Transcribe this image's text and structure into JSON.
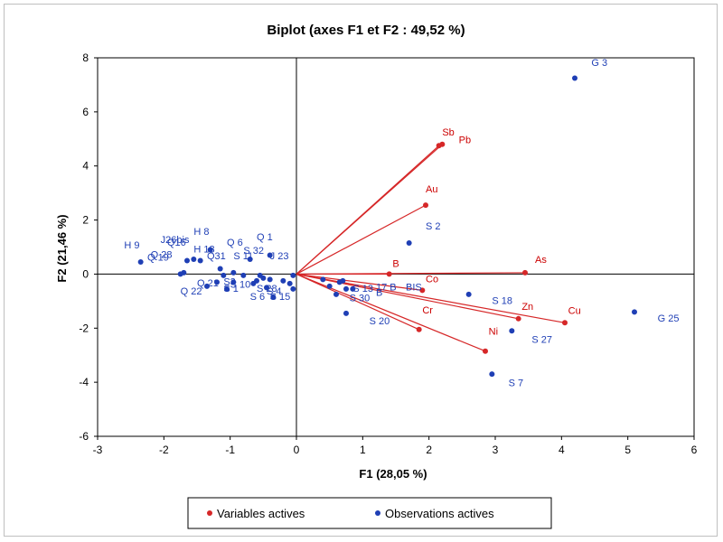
{
  "chart_data": {
    "type": "scatter",
    "title": "Biplot (axes F1 et F2 : 49,52 %)",
    "xlabel": "F1 (28,05 %)",
    "ylabel": "F2 (21,46 %)",
    "xlim": [
      -3,
      6
    ],
    "ylim": [
      -6,
      8
    ],
    "xticks": [
      "-3",
      "-2",
      "-1",
      "0",
      "1",
      "2",
      "3",
      "4",
      "5",
      "6"
    ],
    "yticks": [
      "8",
      "6",
      "4",
      "2",
      "0",
      "-2",
      "-4",
      "-6"
    ],
    "grid": false,
    "legend": {
      "position": "bottom",
      "items": [
        "Variables actives",
        "Observations actives"
      ]
    },
    "colors": {
      "variables": "#d62728",
      "observations": "#1f3fb5"
    },
    "variables": [
      {
        "name": "Sb",
        "x": 2.2,
        "y": 4.8
      },
      {
        "name": "Pb",
        "x": 2.15,
        "y": 4.75
      },
      {
        "name": "Au",
        "x": 1.95,
        "y": 2.55
      },
      {
        "name": "As",
        "x": 3.45,
        "y": 0.05
      },
      {
        "name": "B",
        "x": 1.4,
        "y": 0.0
      },
      {
        "name": "Co",
        "x": 1.9,
        "y": -0.6
      },
      {
        "name": "Zn",
        "x": 3.35,
        "y": -1.65
      },
      {
        "name": "Cu",
        "x": 4.05,
        "y": -1.8
      },
      {
        "name": "Cr",
        "x": 1.85,
        "y": -2.05
      },
      {
        "name": "Ni",
        "x": 2.85,
        "y": -2.85
      }
    ],
    "observations": [
      {
        "name": "G 3",
        "x": 4.2,
        "y": 7.25
      },
      {
        "name": "G 25",
        "x": 5.1,
        "y": -1.4
      },
      {
        "name": "S 2",
        "x": 1.7,
        "y": 1.15
      },
      {
        "name": "S 18",
        "x": 2.6,
        "y": -0.75
      },
      {
        "name": "S 27",
        "x": 3.25,
        "y": -2.1
      },
      {
        "name": "S 7",
        "x": 2.95,
        "y": -3.7
      },
      {
        "name": "S 20",
        "x": 0.75,
        "y": -1.45
      },
      {
        "name": "S 30",
        "x": 0.6,
        "y": -0.75
      },
      {
        "name": "",
        "x": 0.4,
        "y": -0.2
      },
      {
        "name": "",
        "x": 0.5,
        "y": -0.45
      },
      {
        "name": "",
        "x": 0.65,
        "y": -0.3
      },
      {
        "name": "",
        "x": 0.7,
        "y": -0.25
      },
      {
        "name": "",
        "x": 0.75,
        "y": -0.55
      },
      {
        "name": "",
        "x": 0.85,
        "y": -0.55
      },
      {
        "name": "",
        "x": -0.05,
        "y": -0.55
      },
      {
        "name": "",
        "x": -0.1,
        "y": -0.35
      },
      {
        "name": "",
        "x": -0.2,
        "y": -0.25
      },
      {
        "name": "",
        "x": -0.05,
        "y": -0.05
      },
      {
        "name": "J 23",
        "x": -0.4,
        "y": 0.7
      },
      {
        "name": "",
        "x": -0.4,
        "y": -0.2
      },
      {
        "name": "",
        "x": -0.45,
        "y": -0.5
      },
      {
        "name": "S 15",
        "x": -0.35,
        "y": -0.85
      },
      {
        "name": "",
        "x": -0.5,
        "y": -0.15
      },
      {
        "name": "",
        "x": -0.6,
        "y": -0.25
      },
      {
        "name": "",
        "x": -0.55,
        "y": -0.05
      },
      {
        "name": "",
        "x": -0.65,
        "y": -0.35
      },
      {
        "name": "Q 1",
        "x": -0.7,
        "y": 0.55
      },
      {
        "name": "",
        "x": -0.8,
        "y": -0.05
      },
      {
        "name": "",
        "x": -0.95,
        "y": -0.3
      },
      {
        "name": "",
        "x": -0.95,
        "y": 0.05
      },
      {
        "name": "",
        "x": -1.05,
        "y": -0.55
      },
      {
        "name": "",
        "x": -1.1,
        "y": -0.05
      },
      {
        "name": "",
        "x": -1.15,
        "y": 0.2
      },
      {
        "name": "",
        "x": -1.2,
        "y": -0.3
      },
      {
        "name": "H 8",
        "x": -1.3,
        "y": 0.9
      },
      {
        "name": "",
        "x": -1.35,
        "y": -0.45
      },
      {
        "name": "",
        "x": -1.45,
        "y": 0.5
      },
      {
        "name": "",
        "x": -1.55,
        "y": 0.55
      },
      {
        "name": "",
        "x": -1.65,
        "y": 0.5
      },
      {
        "name": "",
        "x": -1.7,
        "y": 0.05
      },
      {
        "name": "",
        "x": -1.75,
        "y": 0.0
      },
      {
        "name": "",
        "x": -2.35,
        "y": 0.45
      }
    ],
    "point_labels": [
      {
        "text": "G 3",
        "x": 4.45,
        "y": 7.7
      },
      {
        "text": "G 25",
        "x": 5.45,
        "y": -1.75
      },
      {
        "text": "S 2",
        "x": 1.95,
        "y": 1.65
      },
      {
        "text": "S 18",
        "x": 2.95,
        "y": -1.1
      },
      {
        "text": "S 27",
        "x": 3.55,
        "y": -2.55
      },
      {
        "text": "S 7",
        "x": 3.2,
        "y": -4.15
      },
      {
        "text": "S 20",
        "x": 1.1,
        "y": -1.85
      },
      {
        "text": "S 30",
        "x": 0.8,
        "y": -1.0
      },
      {
        "text": "S 13",
        "x": 0.85,
        "y": -0.65
      },
      {
        "text": "17 B",
        "x": 1.2,
        "y": -0.6
      },
      {
        "text": "BIS",
        "x": 1.65,
        "y": -0.6
      },
      {
        "text": "B",
        "x": 1.2,
        "y": -0.8
      },
      {
        "text": "H 9",
        "x": -2.6,
        "y": 0.95
      },
      {
        "text": "J26bis",
        "x": -2.05,
        "y": 1.15
      },
      {
        "text": "Q16",
        "x": -1.95,
        "y": 1.05
      },
      {
        "text": "Q 28",
        "x": -2.2,
        "y": 0.6
      },
      {
        "text": "Q 19",
        "x": -2.25,
        "y": 0.5
      },
      {
        "text": "H 8",
        "x": -1.55,
        "y": 1.45
      },
      {
        "text": "H 13",
        "x": -1.55,
        "y": 0.8
      },
      {
        "text": "Q 6",
        "x": -1.05,
        "y": 1.05
      },
      {
        "text": "Q 1",
        "x": -0.6,
        "y": 1.25
      },
      {
        "text": "S 32",
        "x": -0.8,
        "y": 0.75
      },
      {
        "text": "S 11",
        "x": -0.95,
        "y": 0.55
      },
      {
        "text": "Q31",
        "x": -1.35,
        "y": 0.55
      },
      {
        "text": "J 23",
        "x": -0.4,
        "y": 0.55
      },
      {
        "text": "Q 21",
        "x": -1.5,
        "y": -0.45
      },
      {
        "text": "Q 22",
        "x": -1.75,
        "y": -0.75
      },
      {
        "text": "S 10",
        "x": -1.0,
        "y": -0.5
      },
      {
        "text": "S 1",
        "x": -1.1,
        "y": -0.65
      },
      {
        "text": "S 28",
        "x": -0.6,
        "y": -0.65
      },
      {
        "text": "S 15",
        "x": -0.4,
        "y": -0.95
      },
      {
        "text": "S 4",
        "x": -0.45,
        "y": -0.75
      },
      {
        "text": "S 6",
        "x": -0.7,
        "y": -0.95
      },
      {
        "text": "S3",
        "x": -1.1,
        "y": -0.4
      }
    ]
  }
}
